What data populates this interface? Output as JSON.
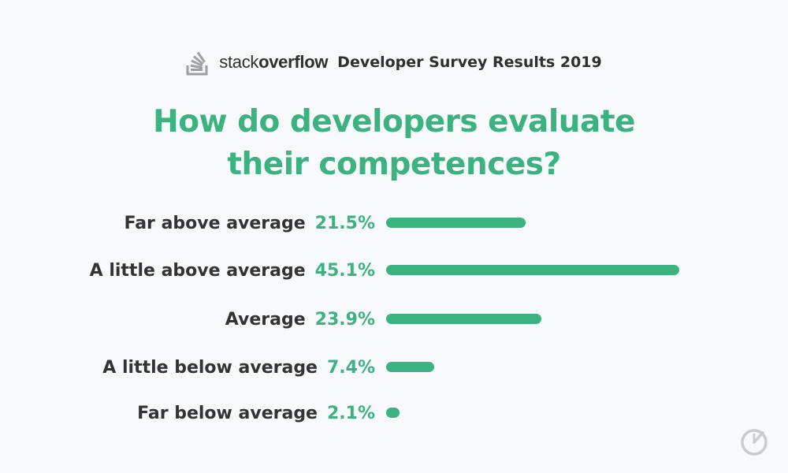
{
  "header": {
    "brand_light": "stack",
    "brand_bold": "overflow",
    "subtitle": "Developer Survey Results 2019",
    "logo_icon": "stackoverflow-logo-icon"
  },
  "colors": {
    "accent": "#3bb27f",
    "text": "#333336",
    "background": "#f8f9fb"
  },
  "chart_data": {
    "type": "bar",
    "orientation": "horizontal",
    "title_lines": [
      "How do developers evaluate",
      "their competences?"
    ],
    "categories": [
      "Far above average",
      "A little above average",
      "Average",
      "A little below average",
      "Far below average"
    ],
    "values": [
      21.5,
      45.1,
      23.9,
      7.4,
      2.1
    ],
    "value_labels": [
      "21.5%",
      "45.1%",
      "23.9%",
      "7.4%",
      "2.1%"
    ],
    "unit": "%",
    "xlim": [
      0,
      45.1
    ]
  },
  "footer": {
    "icon": "brand-mark-icon"
  }
}
